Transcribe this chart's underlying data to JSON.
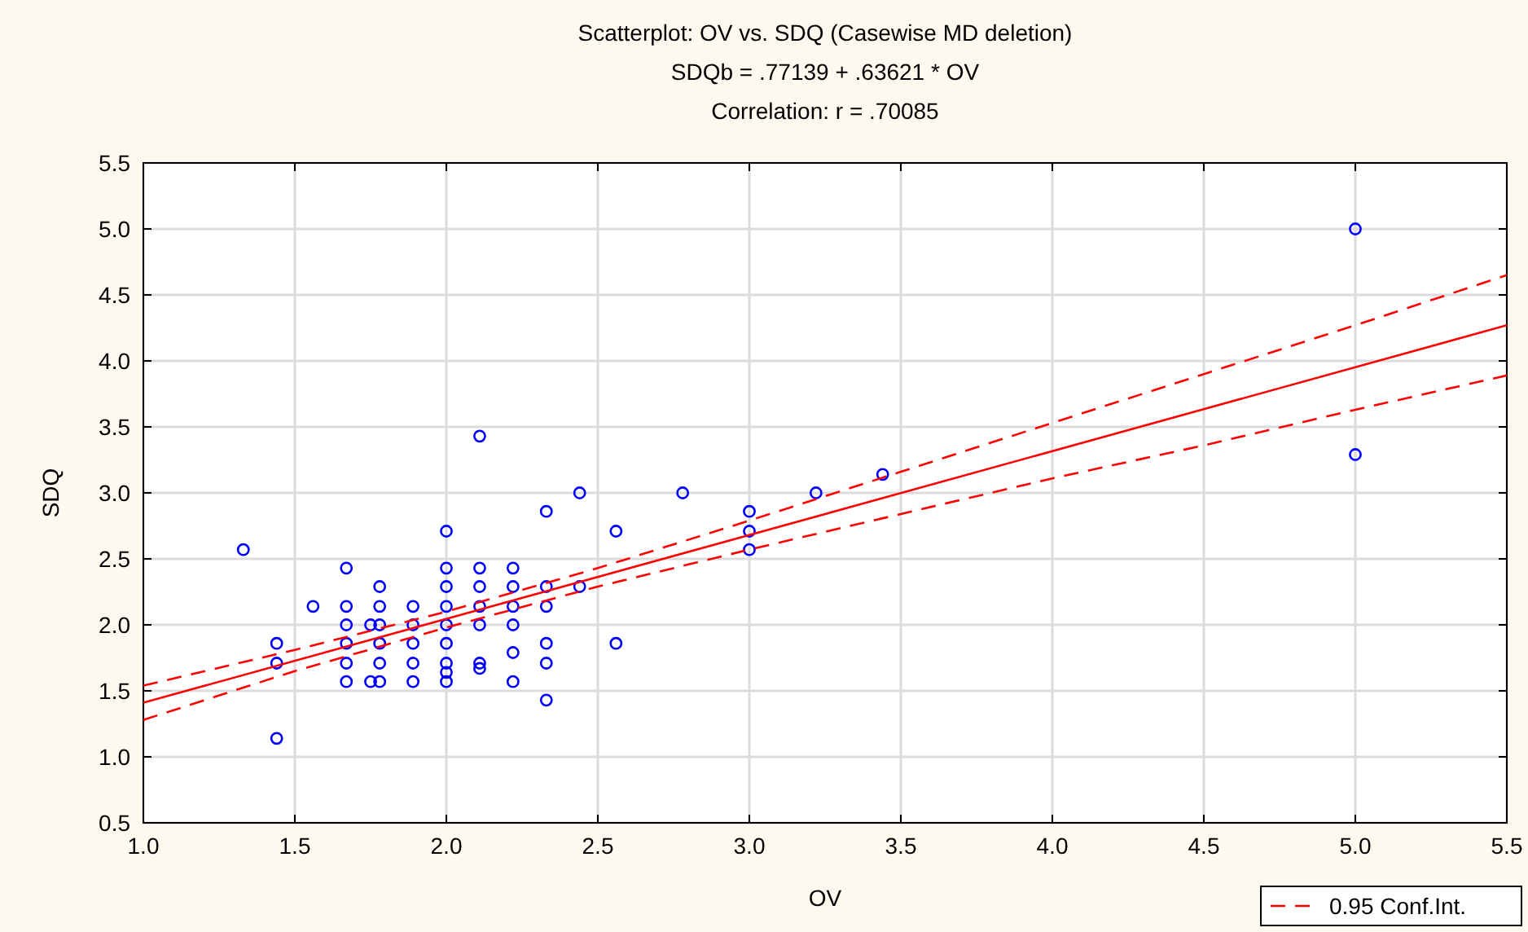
{
  "chart_data": {
    "type": "scatter",
    "title": "Scatterplot: OV vs. SDQ (Casewise MD deletion)",
    "subtitle": "SDQb = .77139 + .63621 * OV",
    "annotations": [
      "Correlation: r = .70085"
    ],
    "xlabel": "OV",
    "ylabel": "SDQ",
    "xlim": [
      1,
      5.5
    ],
    "ylim": [
      0.5,
      5.5
    ],
    "xticks": [
      {
        "value": 1,
        "label": "1.0"
      },
      {
        "value": 1.5,
        "label": "1.5"
      },
      {
        "value": 2,
        "label": "2.0"
      },
      {
        "value": 2.5,
        "label": "2.5"
      },
      {
        "value": 3,
        "label": "3.0"
      },
      {
        "value": 3.5,
        "label": "3.5"
      },
      {
        "value": 4,
        "label": "4.0"
      },
      {
        "value": 4.5,
        "label": "4.5"
      },
      {
        "value": 5,
        "label": "5.0"
      },
      {
        "value": 5.5,
        "label": "5.5"
      }
    ],
    "yticks": [
      {
        "value": 0.5,
        "label": "0.5"
      },
      {
        "value": 1,
        "label": "1.0"
      },
      {
        "value": 1.5,
        "label": "1.5"
      },
      {
        "value": 2,
        "label": "2.0"
      },
      {
        "value": 2.5,
        "label": "2.5"
      },
      {
        "value": 3,
        "label": "3.0"
      },
      {
        "value": 3.5,
        "label": "3.5"
      },
      {
        "value": 4,
        "label": "4.0"
      },
      {
        "value": 4.5,
        "label": "4.5"
      },
      {
        "value": 5,
        "label": "5.0"
      },
      {
        "value": 5.5,
        "label": "5.5"
      }
    ],
    "grid": true,
    "legend": "bottom right",
    "marker": "circle",
    "series": [
      {
        "color": "#0000ff",
        "x": [
          1.33,
          1.44,
          1.44,
          1.44,
          1.56,
          1.67,
          1.67,
          1.67,
          1.67,
          1.67,
          1.67,
          1.78,
          1.78,
          1.78,
          1.78,
          1.78,
          1.78,
          1.75,
          1.75,
          1.89,
          1.89,
          1.89,
          1.89,
          1.89,
          2,
          2,
          2,
          2,
          2,
          2,
          2,
          2,
          2,
          2.11,
          2.11,
          2.11,
          2.11,
          2.11,
          2.11,
          2.11,
          2.22,
          2.22,
          2.22,
          2.22,
          2.22,
          2.22,
          2.33,
          2.33,
          2.33,
          2.33,
          2.33,
          2.33,
          2.44,
          2.44,
          2.56,
          2.56,
          2.78,
          3,
          3,
          3,
          3.22,
          3.44,
          5,
          5
        ],
        "values": [
          2.57,
          1.86,
          1.71,
          1.14,
          2.14,
          2.43,
          2.14,
          2,
          1.86,
          1.71,
          1.57,
          2.29,
          2.14,
          2,
          1.86,
          1.71,
          1.57,
          2,
          1.57,
          2.14,
          2,
          1.86,
          1.71,
          1.57,
          2.71,
          2.43,
          2.29,
          2.14,
          2,
          1.86,
          1.71,
          1.64,
          1.57,
          3.43,
          2.43,
          2.29,
          2.14,
          2,
          1.71,
          1.67,
          2.43,
          2.29,
          2.14,
          2,
          1.79,
          1.57,
          2.86,
          2.29,
          2.14,
          1.86,
          1.71,
          1.43,
          2.29,
          3,
          2.71,
          1.86,
          3,
          2.86,
          2.71,
          2.57,
          3,
          3.14,
          5,
          3.29
        ]
      },
      {
        "type": "line",
        "marker": "none",
        "line_style": "solid",
        "color": "#ff0000",
        "x": [
          1,
          5.5
        ],
        "values": [
          1.41,
          4.27
        ]
      },
      {
        "type": "line",
        "marker": "none",
        "line_style": "dashed",
        "name": "0.95 Conf.Int.",
        "color": "#ff0000",
        "x": [
          1,
          1.5,
          2,
          2.5,
          3,
          3.5,
          4,
          4.5,
          5,
          5.5
        ],
        "values": [
          1.54,
          1.81,
          2.1,
          2.43,
          2.79,
          3.16,
          3.53,
          3.9,
          4.27,
          4.65
        ]
      },
      {
        "type": "line",
        "marker": "none",
        "line_style": "dashed",
        "color": "#ff0000",
        "x": [
          1,
          1.5,
          2,
          2.5,
          3,
          3.5,
          4,
          4.5,
          5,
          5.5
        ],
        "values": [
          1.28,
          1.65,
          1.98,
          2.29,
          2.57,
          2.84,
          3.11,
          3.36,
          3.63,
          3.89
        ]
      }
    ]
  }
}
